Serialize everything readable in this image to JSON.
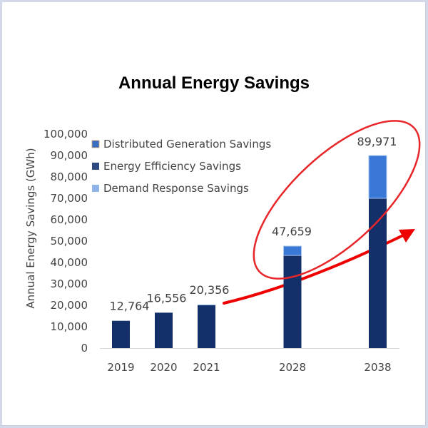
{
  "chart_data": {
    "type": "bar",
    "stacked": true,
    "title": "Annual Energy Savings",
    "xlabel": "",
    "ylabel": "Annual Energy Savings (GWh)",
    "ylim": [
      0,
      100000
    ],
    "yticks": [
      0,
      10000,
      20000,
      30000,
      40000,
      50000,
      60000,
      70000,
      80000,
      90000,
      100000
    ],
    "ytick_labels": [
      "0",
      "10,000",
      "20,000",
      "30,000",
      "40,000",
      "50,000",
      "60,000",
      "70,000",
      "80,000",
      "90,000",
      "100,000"
    ],
    "categories": [
      "2019",
      "2020",
      "2021",
      "2028",
      "2038"
    ],
    "series": [
      {
        "name": "Energy Efficiency Savings",
        "color": "#13306a",
        "values": [
          12764,
          16556,
          20056,
          43300,
          70000
        ]
      },
      {
        "name": "Demand Response Savings",
        "color": "#8fb4e8",
        "values": [
          0,
          0,
          300,
          0,
          0
        ]
      },
      {
        "name": "Distributed Generation Savings",
        "color": "#3a78d8",
        "values": [
          0,
          0,
          0,
          4359,
          19971
        ]
      }
    ],
    "totals": [
      12764,
      16556,
      20356,
      47659,
      89971
    ],
    "total_labels": [
      "12,764",
      "16,556",
      "20,356",
      "47,659",
      "89,971"
    ],
    "legend": {
      "position": "top-left",
      "entries": [
        {
          "label": "Distributed Generation Savings",
          "color": "#3a6fc4"
        },
        {
          "label": "Energy Efficiency Savings",
          "color": "#2c4a80"
        },
        {
          "label": "Demand Response Savings",
          "color": "#8fb4e8"
        }
      ]
    },
    "grid": false,
    "annotations": [
      {
        "type": "ellipse",
        "color": "#e8262a",
        "encloses": [
          "2028",
          "2038"
        ]
      },
      {
        "type": "arrow",
        "color": "#ee0000",
        "direction": "up-right",
        "from": "2021",
        "to": "beyond 2038"
      }
    ]
  }
}
